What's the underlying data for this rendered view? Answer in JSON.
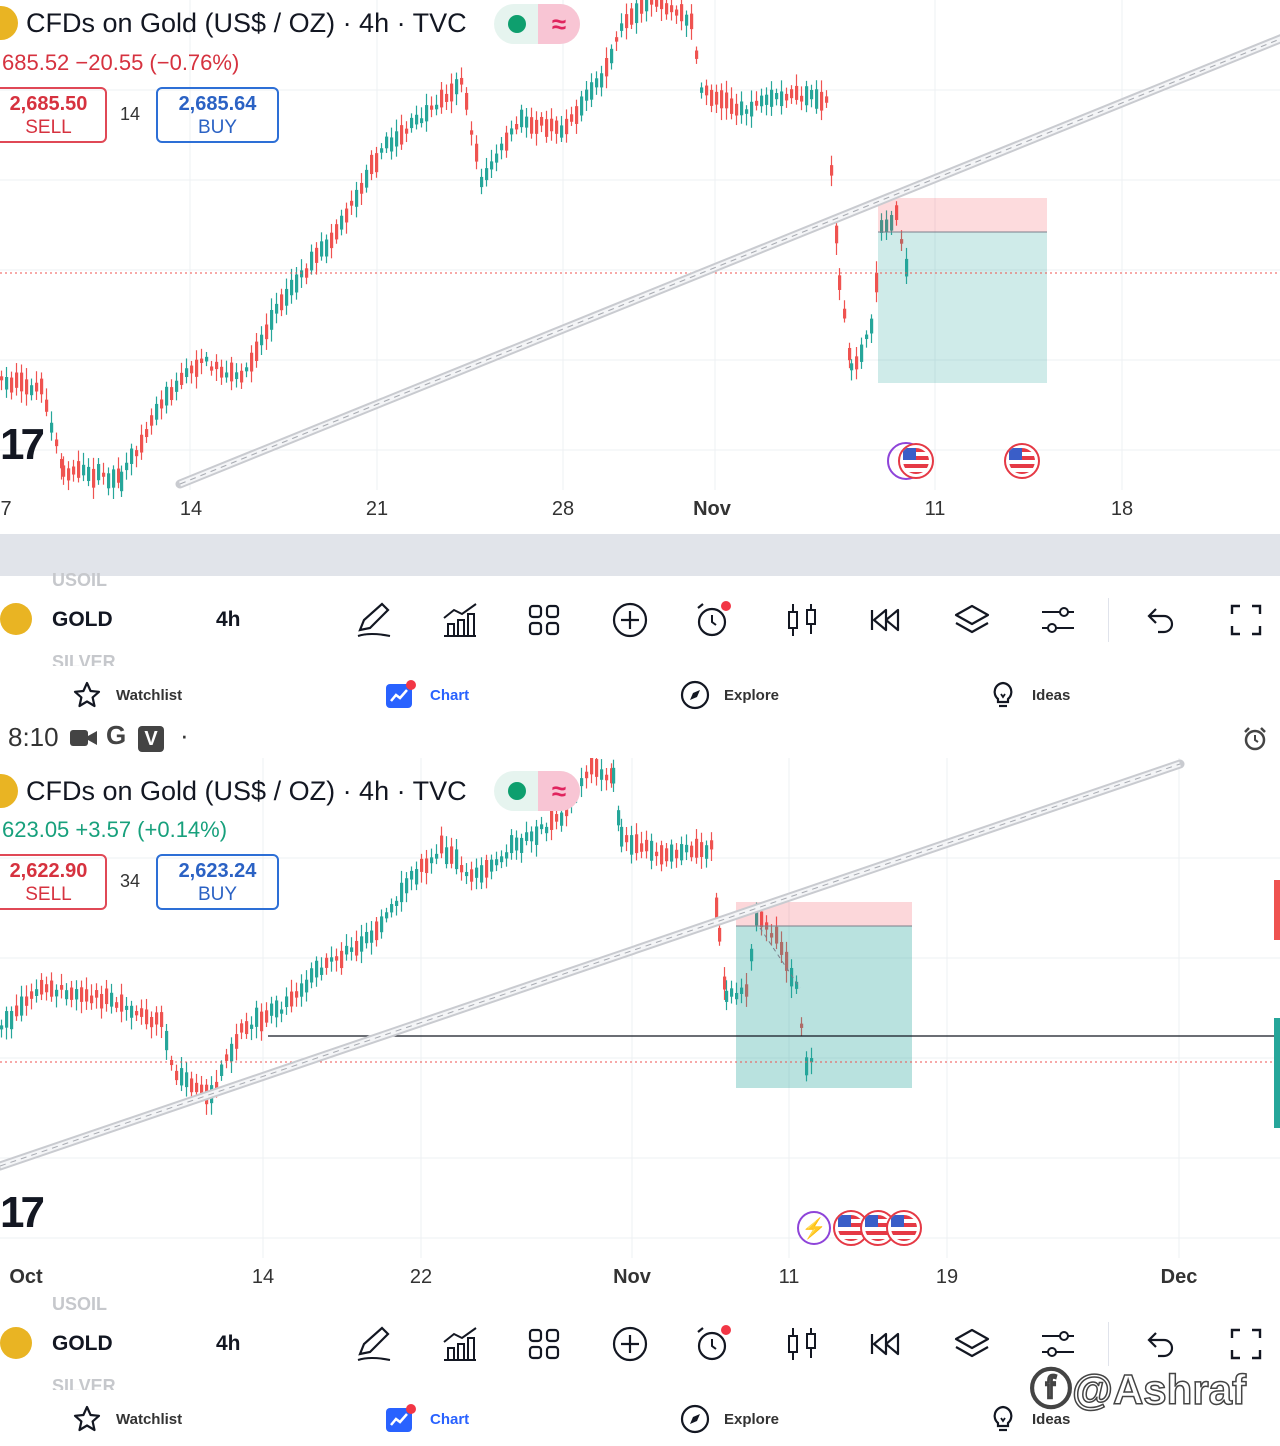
{
  "top": {
    "title": "CFDs on Gold (US$ / OZ) · 4h · TVC",
    "quote": "685.52  −20.55 (−0.76%)",
    "sell_price": "2,685.50",
    "sell_label": "SELL",
    "spread": "14",
    "buy_price": "2,685.64",
    "buy_label": "BUY",
    "x_labels": [
      "7",
      "14",
      "21",
      "28",
      "Nov",
      "11",
      "18"
    ],
    "colors": {
      "down": "#e04856",
      "quote": "#d6323f"
    }
  },
  "bottom": {
    "title": "CFDs on Gold (US$ / OZ) · 4h · TVC",
    "quote": "623.05  +3.57 (+0.14%)",
    "sell_price": "2,622.90",
    "sell_label": "SELL",
    "spread": "34",
    "buy_price": "2,623.24",
    "buy_label": "BUY",
    "x_labels": [
      "Oct",
      "14",
      "22",
      "Nov",
      "11",
      "19",
      "Dec"
    ],
    "colors": {
      "up": "#26a69a",
      "quote": "#17a07c"
    }
  },
  "toolbar": {
    "ghost_above": "USOIL",
    "symbol": "GOLD",
    "timeframe": "4h",
    "ghost_below": "SILVER",
    "icons": [
      "draw-icon",
      "indicators-icon",
      "layouts-icon",
      "add-icon",
      "alert-icon",
      "candles-icon",
      "replay-icon",
      "layers-icon",
      "settings-icon",
      "undo-icon",
      "fullscreen-icon"
    ]
  },
  "nav": {
    "watchlist": "Watchlist",
    "chart": "Chart",
    "explore": "Explore",
    "ideas": "Ideas"
  },
  "status": {
    "time": "8:10",
    "glyphs": "G",
    "dot": "·"
  },
  "watermark": "@Ashraf",
  "tv_logo": "17"
}
